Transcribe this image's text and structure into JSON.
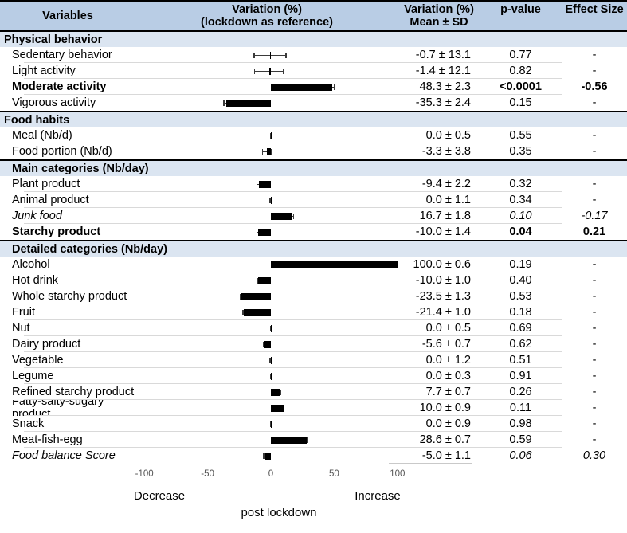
{
  "header": {
    "col1": "Variables",
    "col2_line1": "Variation (%)",
    "col2_line2": "(lockdown as reference)",
    "col3_line1": "Variation (%)",
    "col3_line2": "Mean ± SD",
    "col4": "p-value",
    "col5": "Effect Size"
  },
  "sections": [
    {
      "title": "Physical behavior",
      "rows": [
        {
          "label": "Sedentary behavior",
          "value": -0.7,
          "sd": 13.1,
          "mean_sd": "-0.7 ± 13.1",
          "p": "0.77",
          "effect": "-",
          "style": "normal"
        },
        {
          "label": "Light activity",
          "value": -1.4,
          "sd": 12.1,
          "mean_sd": "-1.4 ± 12.1",
          "p": "0.82",
          "effect": "-",
          "style": "normal"
        },
        {
          "label": "Moderate activity",
          "value": 48.3,
          "sd": 2.3,
          "mean_sd": "48.3 ± 2.3",
          "p": "<0.0001",
          "effect": "-0.56",
          "style": "bold"
        },
        {
          "label": "Vigorous activity",
          "value": -35.3,
          "sd": 2.4,
          "mean_sd": "-35.3 ± 2.4",
          "p": "0.15",
          "effect": "-",
          "style": "normal"
        }
      ]
    },
    {
      "title": "Food habits",
      "rows": [
        {
          "label": "Meal (Nb/d)",
          "value": 0.0,
          "sd": 0.5,
          "mean_sd": "0.0 ± 0.5",
          "p": "0.55",
          "effect": "-",
          "style": "normal"
        },
        {
          "label": "Food portion (Nb/d)",
          "value": -3.3,
          "sd": 3.8,
          "mean_sd": "-3.3 ± 3.8",
          "p": "0.35",
          "effect": "-",
          "style": "normal"
        }
      ]
    },
    {
      "title": "Main categories (Nb/day)",
      "rows": [
        {
          "label": "Plant product",
          "value": -9.4,
          "sd": 2.2,
          "mean_sd": "-9.4 ± 2.2",
          "p": "0.32",
          "effect": "-",
          "style": "normal"
        },
        {
          "label": "Animal product",
          "value": 0.0,
          "sd": 1.1,
          "mean_sd": "0.0 ± 1.1",
          "p": "0.34",
          "effect": "-",
          "style": "normal"
        },
        {
          "label": "Junk food",
          "value": 16.7,
          "sd": 1.8,
          "mean_sd": "16.7 ± 1.8",
          "p": "0.10",
          "effect": "-0.17",
          "style": "italic"
        },
        {
          "label": "Starchy product",
          "value": -10.0,
          "sd": 1.4,
          "mean_sd": "-10.0 ± 1.4",
          "p": "0.04",
          "effect": "0.21",
          "style": "bold"
        }
      ]
    },
    {
      "title": "Detailed categories (Nb/day)",
      "rows": [
        {
          "label": "Alcohol",
          "value": 100.0,
          "sd": 0.6,
          "mean_sd": "100.0 ± 0.6",
          "p": "0.19",
          "effect": "-",
          "style": "normal"
        },
        {
          "label": "Hot drink",
          "value": -10.0,
          "sd": 1.0,
          "mean_sd": "-10.0 ± 1.0",
          "p": "0.40",
          "effect": "-",
          "style": "normal"
        },
        {
          "label": "Whole starchy product",
          "value": -23.5,
          "sd": 1.3,
          "mean_sd": "-23.5 ± 1.3",
          "p": "0.53",
          "effect": "-",
          "style": "normal"
        },
        {
          "label": "Fruit",
          "value": -21.4,
          "sd": 1.0,
          "mean_sd": "-21.4 ± 1.0",
          "p": "0.18",
          "effect": "-",
          "style": "normal"
        },
        {
          "label": "Nut",
          "value": 0.0,
          "sd": 0.5,
          "mean_sd": "0.0 ± 0.5",
          "p": "0.69",
          "effect": "-",
          "style": "normal"
        },
        {
          "label": "Dairy product",
          "value": -5.6,
          "sd": 0.7,
          "mean_sd": "-5.6 ± 0.7",
          "p": "0.62",
          "effect": "-",
          "style": "normal"
        },
        {
          "label": "Vegetable",
          "value": 0.0,
          "sd": 1.2,
          "mean_sd": "0.0 ± 1.2",
          "p": "0.51",
          "effect": "-",
          "style": "normal"
        },
        {
          "label": "Legume",
          "value": 0.0,
          "sd": 0.3,
          "mean_sd": "0.0 ± 0.3",
          "p": "0.91",
          "effect": "-",
          "style": "normal"
        },
        {
          "label": "Refined starchy product",
          "value": 7.7,
          "sd": 0.7,
          "mean_sd": "7.7 ± 0.7",
          "p": "0.26",
          "effect": "-",
          "style": "normal"
        },
        {
          "label": "Fatty-salty-sugary product",
          "value": 10.0,
          "sd": 0.9,
          "mean_sd": "10.0 ± 0.9",
          "p": "0.11",
          "effect": "-",
          "style": "normal"
        },
        {
          "label": "Snack",
          "value": 0.0,
          "sd": 0.9,
          "mean_sd": "0.0 ± 0.9",
          "p": "0.98",
          "effect": "-",
          "style": "normal"
        },
        {
          "label": "Meat-fish-egg",
          "value": 28.6,
          "sd": 0.7,
          "mean_sd": "28.6 ± 0.7",
          "p": "0.59",
          "effect": "-",
          "style": "normal"
        },
        {
          "label": "Food balance Score",
          "value": -5.0,
          "sd": 1.1,
          "mean_sd": "-5.0 ± 1.1",
          "p": "0.06",
          "effect": "0.30",
          "style": "italic"
        }
      ]
    }
  ],
  "axis": {
    "tick_values": [
      -100,
      -50,
      0,
      50,
      100
    ],
    "tick_labels": [
      "-100",
      "-50",
      "0",
      "50",
      "100"
    ],
    "decrease_label": "Decrease",
    "increase_label": "Increase",
    "sublabel": "post lockdown"
  },
  "colors": {
    "header_bg": "#b9cde5",
    "section_bg": "#dbe5f1",
    "bar": "#000000",
    "row_separator": "#d9d9d9"
  },
  "chart_data": {
    "type": "bar",
    "orientation": "horizontal",
    "title": "Variation (%) (lockdown as reference)",
    "xlabel": "post lockdown",
    "xlim": [
      -125,
      125
    ],
    "x_ticks": [
      -100,
      -50,
      0,
      50,
      100
    ],
    "annotations": [
      "Decrease",
      "Increase"
    ],
    "grid": false,
    "legend_position": "none",
    "categories": [
      "Sedentary behavior",
      "Light activity",
      "Moderate activity",
      "Vigorous activity",
      "Meal (Nb/d)",
      "Food portion (Nb/d)",
      "Plant product",
      "Animal product",
      "Junk food",
      "Starchy product",
      "Alcohol",
      "Hot drink",
      "Whole starchy product",
      "Fruit",
      "Nut",
      "Dairy product",
      "Vegetable",
      "Legume",
      "Refined starchy product",
      "Fatty-salty-sugary product",
      "Snack",
      "Meat-fish-egg",
      "Food balance Score"
    ],
    "values": [
      -0.7,
      -1.4,
      48.3,
      -35.3,
      0.0,
      -3.3,
      -9.4,
      0.0,
      16.7,
      -10.0,
      100.0,
      -10.0,
      -23.5,
      -21.4,
      0.0,
      -5.6,
      0.0,
      0.0,
      7.7,
      10.0,
      0.0,
      28.6,
      -5.0
    ],
    "error_sd": [
      13.1,
      12.1,
      2.3,
      2.4,
      0.5,
      3.8,
      2.2,
      1.1,
      1.8,
      1.4,
      0.6,
      1.0,
      1.3,
      1.0,
      0.5,
      0.7,
      1.2,
      0.3,
      0.7,
      0.9,
      0.9,
      0.7,
      1.1
    ],
    "p_values": [
      "0.77",
      "0.82",
      "<0.0001",
      "0.15",
      "0.55",
      "0.35",
      "0.32",
      "0.34",
      "0.10",
      "0.04",
      "0.19",
      "0.40",
      "0.53",
      "0.18",
      "0.69",
      "0.62",
      "0.51",
      "0.91",
      "0.26",
      "0.11",
      "0.98",
      "0.59",
      "0.06"
    ],
    "effect_sizes": [
      "-",
      "-",
      "-0.56",
      "-",
      "-",
      "-",
      "-",
      "-",
      "-0.17",
      "0.21",
      "-",
      "-",
      "-",
      "-",
      "-",
      "-",
      "-",
      "-",
      "-",
      "-",
      "-",
      "-",
      "0.30"
    ]
  }
}
